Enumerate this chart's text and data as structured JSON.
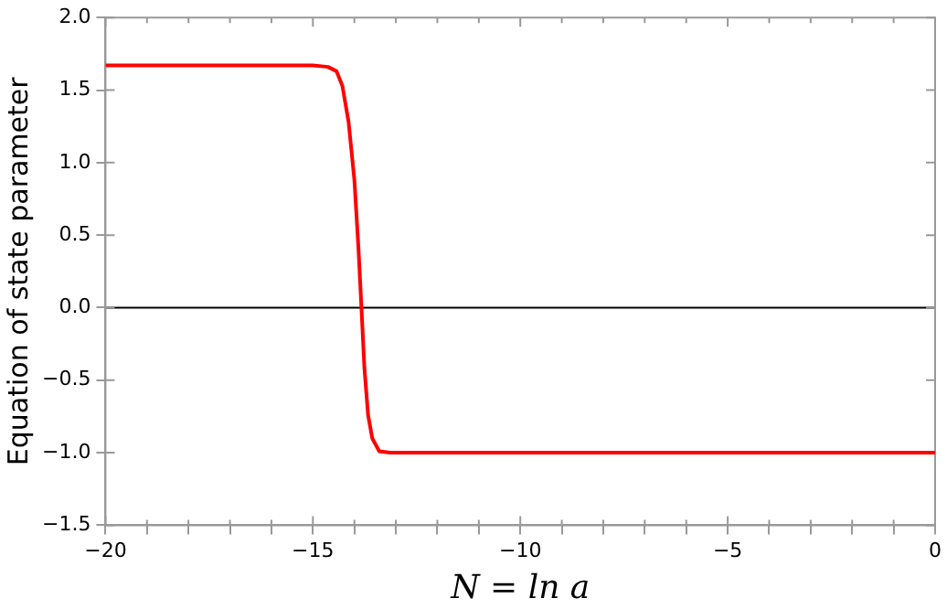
{
  "chart_data": {
    "type": "line",
    "xlabel": "N = ln a",
    "ylabel": "Equation of state parameter",
    "series": [
      {
        "color": "#ff0000",
        "x": [
          -20,
          -16,
          -15,
          -14.64,
          -14.43,
          -14.29,
          -14.14,
          -14.0,
          -13.9,
          -13.83,
          -13.76,
          -13.67,
          -13.57,
          -13.4,
          -13.14,
          -12,
          -10,
          -5,
          0
        ],
        "values": [
          1.67,
          1.67,
          1.67,
          1.66,
          1.63,
          1.53,
          1.28,
          0.88,
          0.4,
          0,
          -0.41,
          -0.74,
          -0.9,
          -0.99,
          -1,
          -1,
          -1,
          -1,
          -1
        ]
      }
    ],
    "xlim": [
      -20,
      0
    ],
    "xticks": [
      {
        "value": -20,
        "label": "−20"
      },
      {
        "value": -19,
        "label": null
      },
      {
        "value": -18,
        "label": null
      },
      {
        "value": -17,
        "label": null
      },
      {
        "value": -16,
        "label": null
      },
      {
        "value": -15,
        "label": "−15"
      },
      {
        "value": -14,
        "label": null
      },
      {
        "value": -13,
        "label": null
      },
      {
        "value": -12,
        "label": null
      },
      {
        "value": -11,
        "label": null
      },
      {
        "value": -10,
        "label": "−10"
      },
      {
        "value": -9,
        "label": null
      },
      {
        "value": -8,
        "label": null
      },
      {
        "value": -7,
        "label": null
      },
      {
        "value": -6,
        "label": null
      },
      {
        "value": -5,
        "label": "−5"
      },
      {
        "value": -4,
        "label": null
      },
      {
        "value": -3,
        "label": null
      },
      {
        "value": -2,
        "label": null
      },
      {
        "value": -1,
        "label": null
      },
      0
    ],
    "ylim": [
      -1.5,
      2.0
    ],
    "yticks": [
      {
        "value": -1.5,
        "label": "−1.5"
      },
      {
        "value": -1,
        "label": "−1.0"
      },
      {
        "value": -0.5,
        "label": "−0.5"
      },
      {
        "value": 0,
        "label": "0.0"
      },
      {
        "value": 0.5,
        "label": "0.5"
      },
      {
        "value": 1,
        "label": "1.0"
      },
      {
        "value": 1.5,
        "label": "1.5"
      },
      {
        "value": 2,
        "label": "2.0"
      }
    ],
    "ref_lines": [
      {
        "axis": "y",
        "value": 0,
        "color": "#000000"
      }
    ],
    "grid": false,
    "legend": false,
    "marker": "none",
    "line_style": "solid"
  }
}
